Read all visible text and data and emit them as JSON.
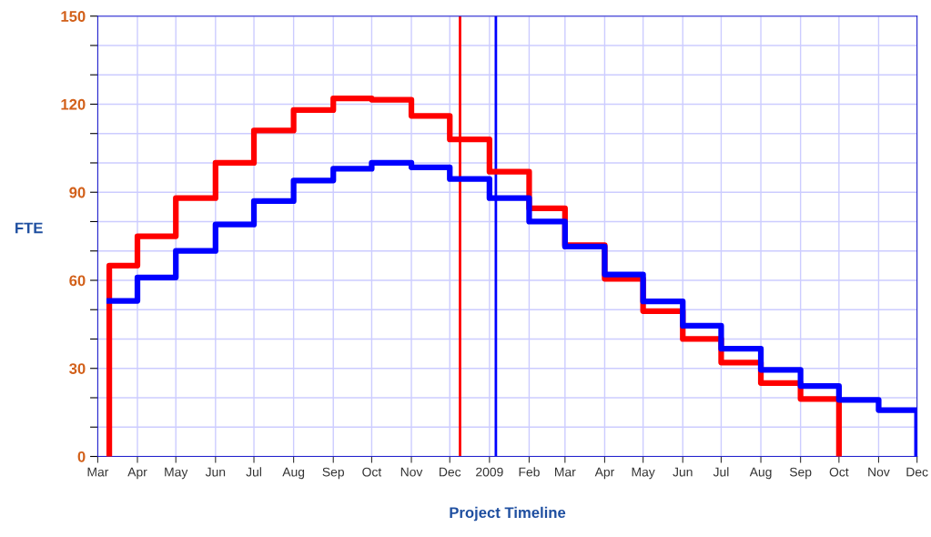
{
  "chart_data": {
    "type": "step",
    "xlabel": "Project Timeline",
    "ylabel": "FTE",
    "series": [
      {
        "color": "#ff0000",
        "x": [
          "2008-03-10",
          "2008-03-10",
          "2008-04-01",
          "2008-05-01",
          "2008-06-01",
          "2008-07-01",
          "2008-08-01",
          "2008-09-01",
          "2008-10-01",
          "2008-11-01",
          "2008-12-01",
          "2009-01-01",
          "2009-02-01",
          "2009-03-01",
          "2009-04-01",
          "2009-05-01",
          "2009-06-01",
          "2009-07-01",
          "2009-08-01",
          "2009-09-01",
          "2009-10-01"
        ],
        "values": [
          0,
          65,
          75,
          88,
          100,
          111,
          118,
          122,
          121.5,
          116,
          108,
          97,
          84.5,
          72,
          60.5,
          49.5,
          40,
          32,
          25,
          19.6,
          0
        ]
      },
      {
        "color": "#0000ff",
        "x": [
          "2008-03-10",
          "2008-04-01",
          "2008-05-01",
          "2008-06-01",
          "2008-07-01",
          "2008-08-01",
          "2008-09-01",
          "2008-10-01",
          "2008-11-01",
          "2008-12-01",
          "2009-01-01",
          "2009-02-01",
          "2009-03-01",
          "2009-04-01",
          "2009-05-01",
          "2009-06-01",
          "2009-07-01",
          "2009-08-01",
          "2009-09-01",
          "2009-10-01",
          "2009-11-01",
          "2009-12-01"
        ],
        "values": [
          53,
          61,
          70,
          79,
          87,
          94,
          98,
          100,
          98.5,
          94.5,
          88,
          80,
          71.5,
          62,
          52.8,
          44.5,
          36.7,
          29.5,
          24,
          19.3,
          15.8,
          0
        ]
      }
    ],
    "ref_lines": [
      {
        "axis": "x",
        "value": "2008-12-09",
        "color": "#ff0000"
      },
      {
        "axis": "x",
        "value": "2009-01-06",
        "color": "#0000ff"
      }
    ],
    "xlim": [
      "2008-03-01",
      "2009-12-01"
    ],
    "xticks": [
      {
        "value": "2008-03-01",
        "label": "Mar"
      },
      {
        "value": "2008-04-01",
        "label": "Apr"
      },
      {
        "value": "2008-05-01",
        "label": "May"
      },
      {
        "value": "2008-06-01",
        "label": "Jun"
      },
      {
        "value": "2008-07-01",
        "label": "Jul"
      },
      {
        "value": "2008-08-01",
        "label": "Aug"
      },
      {
        "value": "2008-09-01",
        "label": "Sep"
      },
      {
        "value": "2008-10-01",
        "label": "Oct"
      },
      {
        "value": "2008-11-01",
        "label": "Nov"
      },
      {
        "value": "2008-12-01",
        "label": "Dec"
      },
      {
        "value": "2009-01-01",
        "label": "2009"
      },
      {
        "value": "2009-02-01",
        "label": "Feb"
      },
      {
        "value": "2009-03-01",
        "label": "Mar"
      },
      {
        "value": "2009-04-01",
        "label": "Apr"
      },
      {
        "value": "2009-05-01",
        "label": "May"
      },
      {
        "value": "2009-06-01",
        "label": "Jun"
      },
      {
        "value": "2009-07-01",
        "label": "Jul"
      },
      {
        "value": "2009-08-01",
        "label": "Aug"
      },
      {
        "value": "2009-09-01",
        "label": "Sep"
      },
      {
        "value": "2009-10-01",
        "label": "Oct"
      },
      {
        "value": "2009-11-01",
        "label": "Nov"
      },
      {
        "value": "2009-12-01",
        "label": "Dec"
      }
    ],
    "ylim": [
      0,
      150
    ],
    "yticks": [
      0,
      {
        "value": 10,
        "label": null
      },
      {
        "value": 20,
        "label": null
      },
      30,
      {
        "value": 40,
        "label": null
      },
      {
        "value": 50,
        "label": null
      },
      60,
      {
        "value": 70,
        "label": null
      },
      {
        "value": 80,
        "label": null
      },
      90,
      {
        "value": 100,
        "label": null
      },
      {
        "value": 110,
        "label": null
      },
      120,
      {
        "value": 130,
        "label": null
      },
      {
        "value": 140,
        "label": null
      },
      150
    ],
    "grid": true,
    "legend": false,
    "line_style": "solid",
    "marker": "none"
  }
}
